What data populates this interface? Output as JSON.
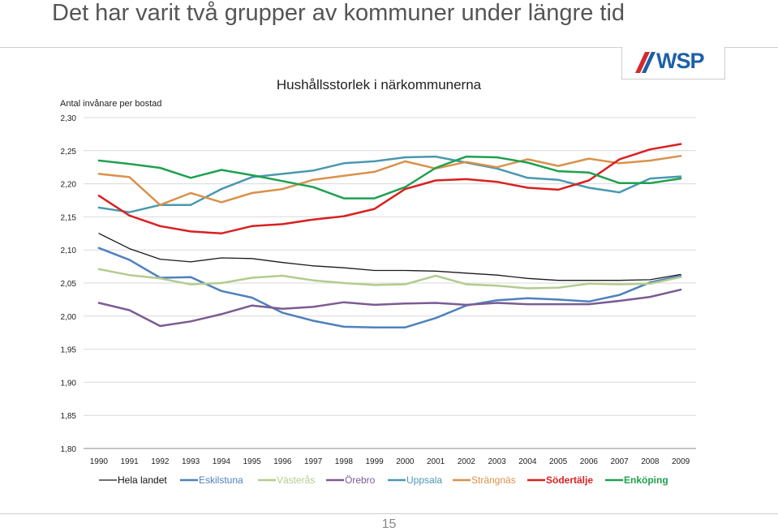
{
  "slide": {
    "title": "Det har varit två grupper av kommuner under längre tid",
    "page_number": "15",
    "logo_text": "WSP"
  },
  "chart_data": {
    "type": "line",
    "title": "Hushållsstorlek i närkommunerna",
    "ylabel": "Antal invånare per bostad",
    "xlabel": "",
    "ylim": [
      1.8,
      2.3
    ],
    "y_ticks": [
      "1,80",
      "1,85",
      "1,90",
      "1,95",
      "2,00",
      "2,05",
      "2,10",
      "2,15",
      "2,20",
      "2,25",
      "2,30"
    ],
    "x": [
      "1990",
      "1991",
      "1992",
      "1993",
      "1994",
      "1995",
      "1996",
      "1997",
      "1998",
      "1999",
      "2000",
      "2001",
      "2002",
      "2003",
      "2004",
      "2005",
      "2006",
      "2007",
      "2008",
      "2009"
    ],
    "grid": "horizontal",
    "legend_position": "bottom",
    "series": [
      {
        "name": "Hela landet",
        "color": "#1a1a1a",
        "width": 1.3,
        "values": [
          2.125,
          2.102,
          2.086,
          2.082,
          2.088,
          2.087,
          2.081,
          2.076,
          2.073,
          2.069,
          2.069,
          2.068,
          2.065,
          2.062,
          2.057,
          2.054,
          2.054,
          2.054,
          2.055,
          2.063
        ]
      },
      {
        "name": "Eskilstuna",
        "color": "#4f81bd",
        "width": 2.5,
        "values": [
          2.103,
          2.085,
          2.058,
          2.059,
          2.038,
          2.028,
          2.005,
          1.993,
          1.984,
          1.983,
          1.983,
          1.997,
          2.016,
          2.024,
          2.027,
          2.025,
          2.022,
          2.032,
          2.051,
          2.061
        ]
      },
      {
        "name": "Västerås",
        "color": "#b3cc8e",
        "width": 2.5,
        "values": [
          2.071,
          2.062,
          2.057,
          2.048,
          2.05,
          2.058,
          2.061,
          2.054,
          2.05,
          2.047,
          2.048,
          2.061,
          2.048,
          2.046,
          2.042,
          2.043,
          2.049,
          2.048,
          2.049,
          2.059
        ]
      },
      {
        "name": "Örebro",
        "color": "#7b5b94",
        "width": 2.5,
        "values": [
          2.02,
          2.009,
          1.985,
          1.992,
          2.003,
          2.016,
          2.011,
          2.014,
          2.021,
          2.017,
          2.019,
          2.02,
          2.017,
          2.02,
          2.018,
          2.018,
          2.018,
          2.023,
          2.029,
          2.04
        ]
      },
      {
        "name": "Uppsala",
        "color": "#4a98b0",
        "width": 2.5,
        "values": [
          2.164,
          2.157,
          2.168,
          2.168,
          2.192,
          2.21,
          2.215,
          2.22,
          2.231,
          2.234,
          2.24,
          2.241,
          2.232,
          2.223,
          2.209,
          2.206,
          2.194,
          2.187,
          2.208,
          2.211
        ]
      },
      {
        "name": "Strängnäs",
        "color": "#d9924a",
        "width": 2.5,
        "values": [
          2.215,
          2.21,
          2.168,
          2.186,
          2.172,
          2.186,
          2.192,
          2.206,
          2.212,
          2.218,
          2.234,
          2.223,
          2.233,
          2.225,
          2.237,
          2.227,
          2.238,
          2.231,
          2.235,
          2.242
        ]
      },
      {
        "name": "Södertälje",
        "color": "#d92020",
        "width": 2.5,
        "values": [
          2.182,
          2.152,
          2.136,
          2.128,
          2.125,
          2.136,
          2.139,
          2.146,
          2.151,
          2.162,
          2.192,
          2.205,
          2.207,
          2.203,
          2.194,
          2.191,
          2.205,
          2.237,
          2.252,
          2.26
        ]
      },
      {
        "name": "Enköping",
        "color": "#1fa050",
        "width": 2.5,
        "values": [
          2.235,
          2.23,
          2.224,
          2.209,
          2.221,
          2.213,
          2.204,
          2.195,
          2.178,
          2.178,
          2.195,
          2.224,
          2.241,
          2.24,
          2.232,
          2.219,
          2.217,
          2.201,
          2.201,
          2.208
        ]
      }
    ]
  }
}
